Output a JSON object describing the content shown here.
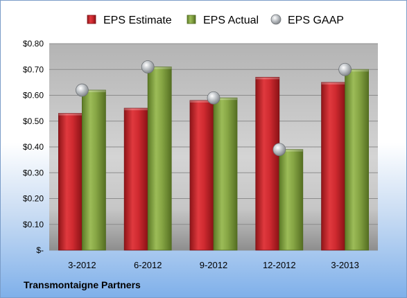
{
  "company": "Transmontaigne Partners",
  "colors": {
    "estimate": "#c0272d",
    "actual": "#7f9f3c",
    "gaap": "#b0b4b8"
  },
  "chart_data": {
    "type": "bar",
    "title": "",
    "xlabel": "",
    "ylabel": "",
    "categories": [
      "3-2012",
      "6-2012",
      "9-2012",
      "12-2012",
      "3-2013"
    ],
    "series": [
      {
        "name": "EPS Estimate",
        "kind": "bar",
        "values": [
          0.53,
          0.55,
          0.58,
          0.67,
          0.65
        ]
      },
      {
        "name": "EPS Actual",
        "kind": "bar",
        "values": [
          0.62,
          0.71,
          0.59,
          0.39,
          0.7
        ]
      },
      {
        "name": "EPS GAAP",
        "kind": "marker",
        "values": [
          0.62,
          0.71,
          0.59,
          0.39,
          0.7
        ]
      }
    ],
    "ylim": [
      0,
      0.8
    ],
    "yticks": [
      0,
      0.1,
      0.2,
      0.3,
      0.4,
      0.5,
      0.6,
      0.7,
      0.8
    ],
    "ytick_labels": [
      "$-",
      "$0.10",
      "$0.20",
      "$0.30",
      "$0.40",
      "$0.50",
      "$0.60",
      "$0.70",
      "$0.80"
    ],
    "grid": true,
    "legend": "top"
  }
}
